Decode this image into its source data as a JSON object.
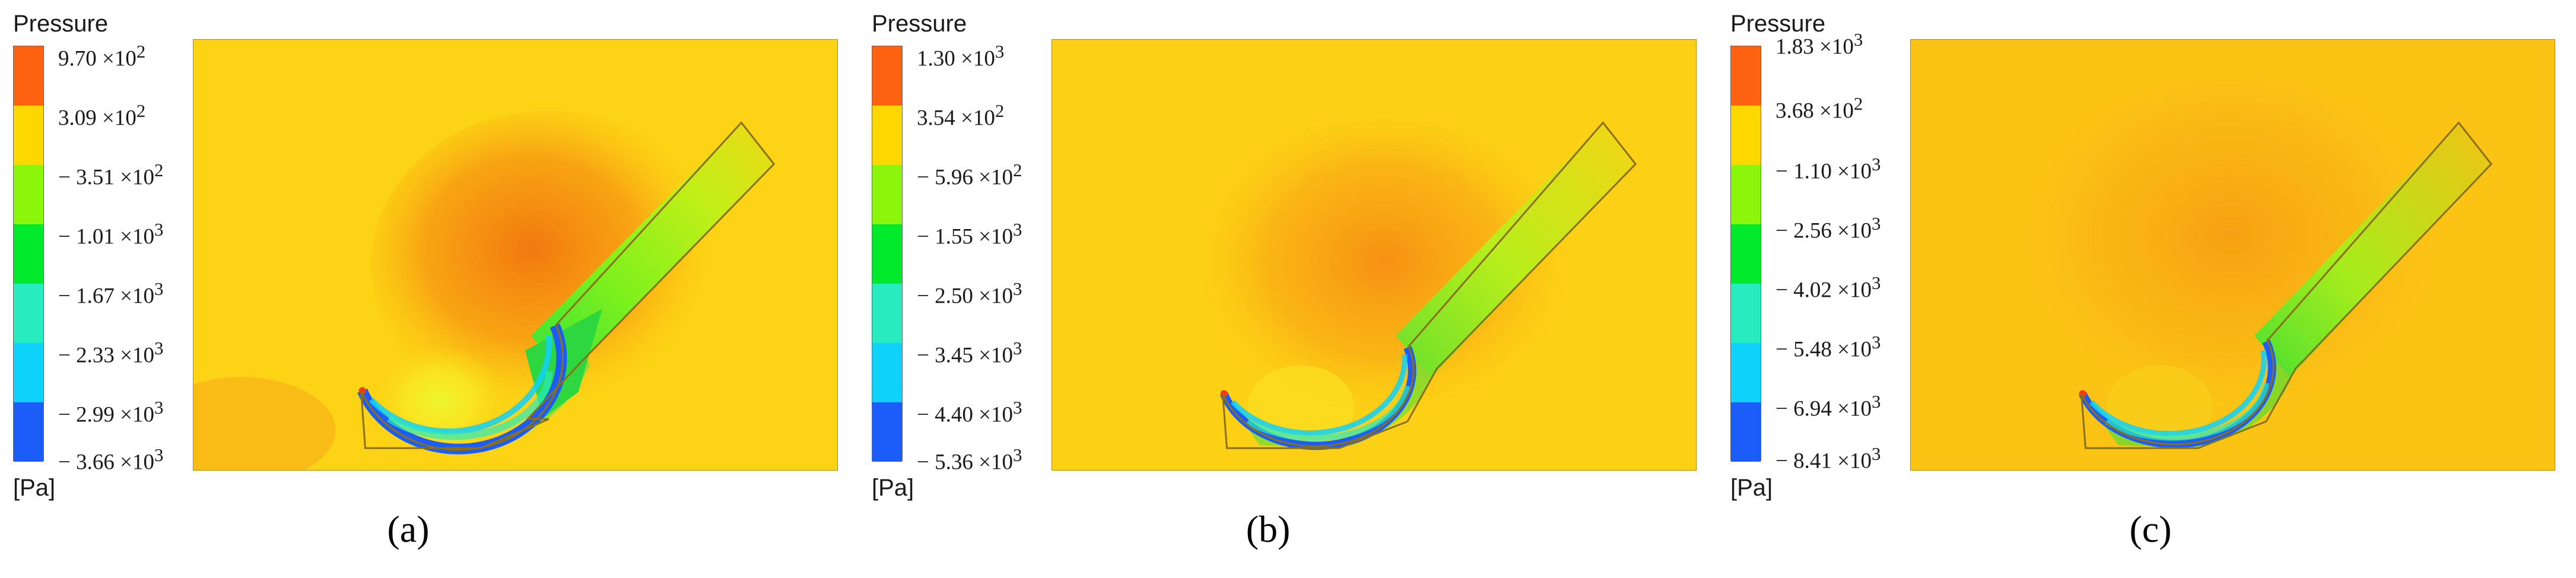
{
  "figure": {
    "panels": [
      {
        "legend_title": "Pressure",
        "unit": "[Pa]",
        "caption": "(a)",
        "levels": [
          {
            "mantissa": "9.70",
            "exp": "2"
          },
          {
            "mantissa": "3.09",
            "exp": "2"
          },
          {
            "mantissa": "− 3.51",
            "exp": "2"
          },
          {
            "mantissa": "− 1.01",
            "exp": "3"
          },
          {
            "mantissa": "− 1.67",
            "exp": "3"
          },
          {
            "mantissa": "− 2.33",
            "exp": "3"
          },
          {
            "mantissa": "− 2.99",
            "exp": "3"
          },
          {
            "mantissa": "− 3.66",
            "exp": "3"
          }
        ]
      },
      {
        "legend_title": "Pressure",
        "unit": "[Pa]",
        "caption": "(b)",
        "levels": [
          {
            "mantissa": "1.30",
            "exp": "3"
          },
          {
            "mantissa": "3.54",
            "exp": "2"
          },
          {
            "mantissa": "− 5.96",
            "exp": "2"
          },
          {
            "mantissa": "− 1.55",
            "exp": "3"
          },
          {
            "mantissa": "− 2.50",
            "exp": "3"
          },
          {
            "mantissa": "− 3.45",
            "exp": "3"
          },
          {
            "mantissa": "− 4.40",
            "exp": "3"
          },
          {
            "mantissa": "− 5.36",
            "exp": "3"
          }
        ]
      },
      {
        "legend_title": "Pressure",
        "unit": "[Pa]",
        "caption": "(c)",
        "levels": [
          {
            "mantissa": "1.83",
            "exp": "3"
          },
          {
            "mantissa": "3.68",
            "exp": "2"
          },
          {
            "mantissa": "− 1.10",
            "exp": "3"
          },
          {
            "mantissa": "− 2.56",
            "exp": "3"
          },
          {
            "mantissa": "− 4.02",
            "exp": "3"
          },
          {
            "mantissa": "− 5.48",
            "exp": "3"
          },
          {
            "mantissa": "− 6.94",
            "exp": "3"
          },
          {
            "mantissa": "− 8.41",
            "exp": "3"
          }
        ]
      }
    ]
  }
}
